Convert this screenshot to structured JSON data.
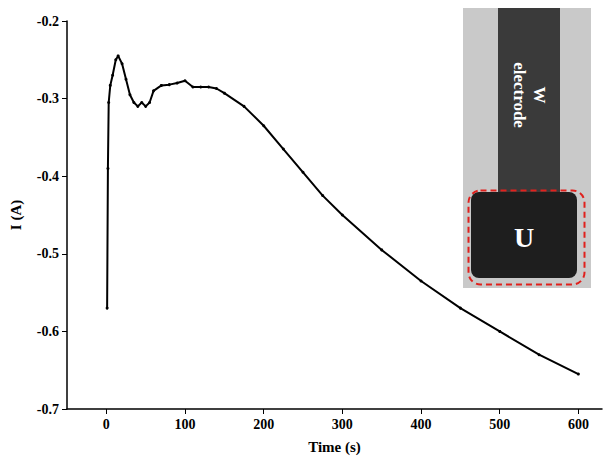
{
  "chart_data": {
    "type": "line",
    "x_label": "Time (s)",
    "y_label": "I (A)",
    "x": [
      1,
      2,
      3,
      5,
      8,
      12,
      15,
      20,
      25,
      30,
      35,
      40,
      45,
      50,
      55,
      60,
      70,
      80,
      90,
      100,
      110,
      120,
      130,
      140,
      150,
      175,
      200,
      225,
      250,
      275,
      300,
      350,
      400,
      450,
      500,
      550,
      600
    ],
    "values": [
      -0.57,
      -0.39,
      -0.305,
      -0.283,
      -0.27,
      -0.25,
      -0.245,
      -0.255,
      -0.275,
      -0.295,
      -0.305,
      -0.31,
      -0.305,
      -0.31,
      -0.305,
      -0.29,
      -0.283,
      -0.282,
      -0.28,
      -0.277,
      -0.285,
      -0.285,
      -0.285,
      -0.287,
      -0.293,
      -0.31,
      -0.335,
      -0.365,
      -0.395,
      -0.425,
      -0.45,
      -0.495,
      -0.535,
      -0.57,
      -0.6,
      -0.63,
      -0.655
    ],
    "color": "#000000",
    "marker": "circle",
    "xlim": [
      -50,
      630
    ],
    "xticks": [
      0,
      100,
      200,
      300,
      400,
      500,
      600
    ],
    "ylim": [
      -0.7,
      -0.2
    ],
    "yticks": [
      -0.7,
      -0.6,
      -0.5,
      -0.4,
      -0.3,
      -0.2
    ],
    "grid": false,
    "annotations": [
      "W electrode",
      "U"
    ]
  }
}
